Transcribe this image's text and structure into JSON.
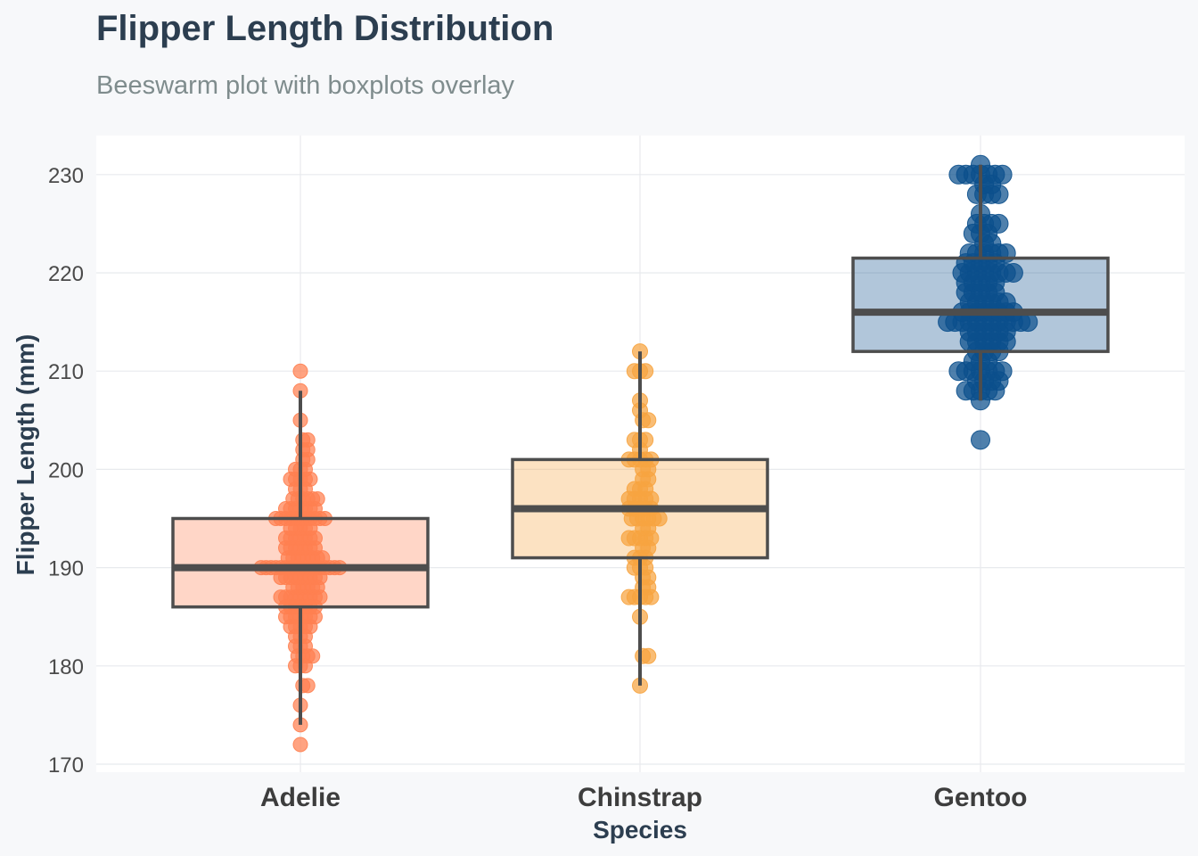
{
  "title": "Flipper Length Distribution",
  "subtitle": "Beeswarm plot with boxplots overlay",
  "colors": {
    "background": "#f7f8fa",
    "panel": "#ffffff",
    "grid": "#e8eaed",
    "box_stroke": "#4d4d4d",
    "Adelie": "#ff7f50",
    "Chinstrap": "#f7a440",
    "Gentoo": "#0b4f8c"
  },
  "chart_data": {
    "type": "boxplot-beeswarm",
    "title": "Flipper Length Distribution",
    "subtitle": "Beeswarm plot with boxplots overlay",
    "xlabel": "Species",
    "ylabel": "Flipper Length (mm)",
    "ylim": [
      169.5,
      232
    ],
    "yticks": [
      170,
      180,
      190,
      200,
      210,
      220,
      230
    ],
    "grid": true,
    "categories": [
      "Adelie",
      "Chinstrap",
      "Gentoo"
    ],
    "boxes": [
      {
        "name": "Adelie",
        "whisker_low": 174,
        "q1": 186,
        "median": 190,
        "q3": 195,
        "whisker_high": 208
      },
      {
        "name": "Chinstrap",
        "whisker_low": 178,
        "q1": 191,
        "median": 196,
        "q3": 201,
        "whisker_high": 212
      },
      {
        "name": "Gentoo",
        "whisker_low": 207,
        "q1": 212,
        "median": 216,
        "q3": 221.5,
        "whisker_high": 231
      }
    ],
    "points": [
      {
        "name": "Adelie",
        "counts": [
          [
            172,
            1
          ],
          [
            174,
            1
          ],
          [
            176,
            1
          ],
          [
            178,
            2
          ],
          [
            180,
            3
          ],
          [
            181,
            4
          ],
          [
            182,
            3
          ],
          [
            183,
            3
          ],
          [
            184,
            5
          ],
          [
            185,
            7
          ],
          [
            186,
            7
          ],
          [
            187,
            9
          ],
          [
            188,
            6
          ],
          [
            189,
            9
          ],
          [
            190,
            17
          ],
          [
            191,
            8
          ],
          [
            192,
            7
          ],
          [
            193,
            7
          ],
          [
            194,
            5
          ],
          [
            195,
            11
          ],
          [
            196,
            7
          ],
          [
            197,
            6
          ],
          [
            198,
            3
          ],
          [
            199,
            5
          ],
          [
            200,
            3
          ],
          [
            201,
            2
          ],
          [
            202,
            2
          ],
          [
            203,
            2
          ],
          [
            205,
            1
          ],
          [
            208,
            1
          ],
          [
            210,
            1
          ]
        ]
      },
      {
        "name": "Chinstrap",
        "counts": [
          [
            178,
            1
          ],
          [
            181,
            2
          ],
          [
            185,
            1
          ],
          [
            187,
            5
          ],
          [
            188,
            2
          ],
          [
            189,
            2
          ],
          [
            190,
            3
          ],
          [
            191,
            3
          ],
          [
            192,
            2
          ],
          [
            193,
            5
          ],
          [
            194,
            2
          ],
          [
            195,
            6
          ],
          [
            196,
            5
          ],
          [
            197,
            5
          ],
          [
            198,
            3
          ],
          [
            199,
            2
          ],
          [
            200,
            2
          ],
          [
            201,
            5
          ],
          [
            202,
            1
          ],
          [
            203,
            3
          ],
          [
            205,
            2
          ],
          [
            206,
            1
          ],
          [
            207,
            1
          ],
          [
            210,
            3
          ],
          [
            212,
            1
          ]
        ]
      },
      {
        "name": "Gentoo",
        "counts": [
          [
            203,
            1
          ],
          [
            207,
            1
          ],
          [
            208,
            5
          ],
          [
            209,
            4
          ],
          [
            210,
            7
          ],
          [
            211,
            3
          ],
          [
            212,
            4
          ],
          [
            213,
            6
          ],
          [
            214,
            6
          ],
          [
            215,
            12
          ],
          [
            216,
            8
          ],
          [
            217,
            6
          ],
          [
            218,
            5
          ],
          [
            219,
            5
          ],
          [
            220,
            8
          ],
          [
            221,
            5
          ],
          [
            222,
            6
          ],
          [
            223,
            2
          ],
          [
            224,
            3
          ],
          [
            225,
            4
          ],
          [
            226,
            1
          ],
          [
            228,
            4
          ],
          [
            229,
            2
          ],
          [
            230,
            7
          ],
          [
            231,
            1
          ]
        ]
      }
    ]
  }
}
